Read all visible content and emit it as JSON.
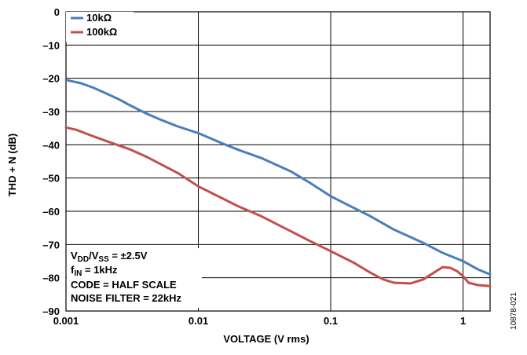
{
  "chart_data": {
    "type": "line",
    "title": "",
    "xlabel": "VOLTAGE (V rms)",
    "ylabel": "THD + N (dB)",
    "xscale": "log",
    "xlim": [
      0.001,
      1.6
    ],
    "ylim": [
      -90,
      0
    ],
    "x_ticks": [
      "0.001",
      "0.01",
      "0.1",
      "1"
    ],
    "y_ticks": [
      "0",
      "–10",
      "–20",
      "–30",
      "–40",
      "–50",
      "–60",
      "–70",
      "–80",
      "–90"
    ],
    "grid": true,
    "legend_position": "top-left",
    "series": [
      {
        "name": "10kΩ",
        "color": "#4a7ebb",
        "points": [
          [
            0.001,
            -20.5
          ],
          [
            0.0013,
            -21.5
          ],
          [
            0.0016,
            -22.8
          ],
          [
            0.002,
            -24.5
          ],
          [
            0.0025,
            -26.3
          ],
          [
            0.003,
            -28.0
          ],
          [
            0.004,
            -30.5
          ],
          [
            0.005,
            -32.2
          ],
          [
            0.007,
            -34.5
          ],
          [
            0.01,
            -36.5
          ],
          [
            0.015,
            -39.5
          ],
          [
            0.02,
            -41.5
          ],
          [
            0.03,
            -44.0
          ],
          [
            0.05,
            -48.0
          ],
          [
            0.07,
            -51.5
          ],
          [
            0.1,
            -55.5
          ],
          [
            0.15,
            -59.0
          ],
          [
            0.2,
            -61.5
          ],
          [
            0.3,
            -65.5
          ],
          [
            0.5,
            -69.5
          ],
          [
            0.7,
            -72.5
          ],
          [
            1.0,
            -75.0
          ],
          [
            1.3,
            -77.5
          ],
          [
            1.6,
            -79.0
          ]
        ]
      },
      {
        "name": "100kΩ",
        "color": "#c0504d",
        "points": [
          [
            0.001,
            -34.8
          ],
          [
            0.0012,
            -35.5
          ],
          [
            0.0015,
            -37.0
          ],
          [
            0.002,
            -38.8
          ],
          [
            0.003,
            -41.3
          ],
          [
            0.004,
            -43.5
          ],
          [
            0.005,
            -45.5
          ],
          [
            0.007,
            -48.5
          ],
          [
            0.01,
            -52.5
          ],
          [
            0.015,
            -56.0
          ],
          [
            0.02,
            -58.5
          ],
          [
            0.03,
            -61.5
          ],
          [
            0.05,
            -66.0
          ],
          [
            0.07,
            -69.0
          ],
          [
            0.1,
            -72.0
          ],
          [
            0.15,
            -75.5
          ],
          [
            0.2,
            -78.5
          ],
          [
            0.25,
            -80.5
          ],
          [
            0.3,
            -81.5
          ],
          [
            0.4,
            -81.7
          ],
          [
            0.5,
            -80.5
          ],
          [
            0.6,
            -78.5
          ],
          [
            0.7,
            -76.8
          ],
          [
            0.8,
            -77.0
          ],
          [
            0.9,
            -78.0
          ],
          [
            1.0,
            -79.5
          ],
          [
            1.1,
            -81.5
          ],
          [
            1.3,
            -82.2
          ],
          [
            1.6,
            -82.5
          ]
        ]
      }
    ],
    "annotations": {
      "line1_main": "V",
      "line1_sub1": "DD",
      "line1_mid": "/V",
      "line1_sub2": "SS",
      "line1_tail": " = ±2.5V",
      "line2_main": "f",
      "line2_sub": "IN",
      "line2_tail": " = 1kHz",
      "line3": "CODE = HALF SCALE",
      "line4": "NOISE FILTER = 22kHz"
    },
    "figure_id": "10878-021"
  }
}
